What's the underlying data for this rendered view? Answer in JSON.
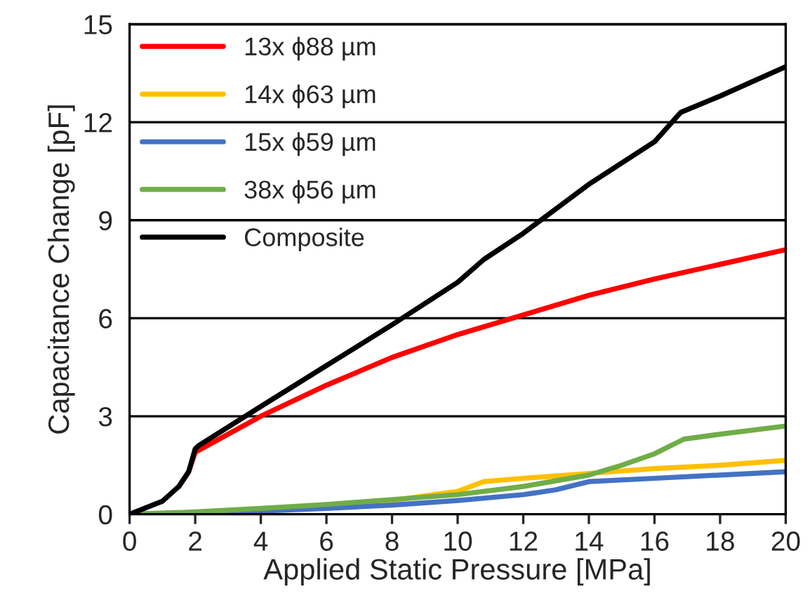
{
  "chart_data": {
    "type": "line",
    "xlabel": "Applied Static Pressure [MPa]",
    "ylabel": "Capacitance Change [pF]",
    "xlim": [
      0,
      20
    ],
    "xticks": [
      0,
      2,
      4,
      6,
      8,
      10,
      12,
      14,
      16,
      18,
      20
    ],
    "ylim": [
      0,
      15
    ],
    "yticks": [
      0,
      3,
      6,
      9,
      12,
      15
    ],
    "grid": "y",
    "legend": "top left",
    "marker": "none",
    "line_style": "solid",
    "series": [
      {
        "name": "13x ϕ88 µm",
        "color": "#ff0000",
        "x": [
          1.5,
          1.8,
          2.0,
          4,
          6,
          8,
          10,
          12,
          14,
          16,
          18,
          20
        ],
        "values": [
          0.85,
          1.3,
          1.9,
          3.0,
          3.95,
          4.8,
          5.5,
          6.1,
          6.7,
          7.2,
          7.65,
          8.1
        ]
      },
      {
        "name": "14x ϕ63 µm",
        "color": "#ffc000",
        "x": [
          6,
          8,
          10,
          10.8,
          12,
          14,
          16,
          18,
          20
        ],
        "values": [
          0.28,
          0.42,
          0.7,
          1.0,
          1.1,
          1.25,
          1.4,
          1.5,
          1.65
        ]
      },
      {
        "name": "15x ϕ59 µm",
        "color": "#4472c4",
        "x": [
          0,
          4,
          6,
          8,
          10,
          12,
          13,
          14,
          16,
          18,
          20
        ],
        "values": [
          0,
          0.1,
          0.18,
          0.28,
          0.42,
          0.6,
          0.75,
          1.0,
          1.1,
          1.2,
          1.3
        ]
      },
      {
        "name": "38x ϕ56 µm",
        "color": "#70ad47",
        "x": [
          0,
          2,
          4,
          6,
          8,
          10,
          12,
          14,
          15,
          16,
          16.9,
          18,
          20
        ],
        "values": [
          0,
          0.07,
          0.18,
          0.3,
          0.45,
          0.6,
          0.85,
          1.2,
          1.5,
          1.85,
          2.3,
          2.45,
          2.7
        ]
      },
      {
        "name": "Composite",
        "color": "#000000",
        "x": [
          0,
          1,
          1.5,
          1.8,
          2.0,
          2.1,
          4,
          6,
          8,
          10,
          10.8,
          12,
          14,
          16,
          16.8,
          18,
          20
        ],
        "values": [
          0,
          0.4,
          0.85,
          1.3,
          2.0,
          2.1,
          3.3,
          4.55,
          5.8,
          7.1,
          7.8,
          8.6,
          10.1,
          11.4,
          12.3,
          12.8,
          13.7
        ]
      }
    ]
  }
}
